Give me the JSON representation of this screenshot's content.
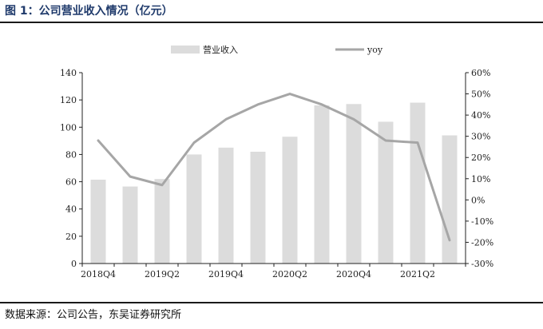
{
  "title": "图 1：公司营业收入情况（亿元）",
  "source": "数据来源：公司公告，东吴证券研究所",
  "colors": {
    "bar": "#dcdcdc",
    "line": "#a6a6a6",
    "axis": "#222222",
    "title": "#1f3a6b"
  },
  "chart_data": {
    "type": "bar",
    "categories": [
      "2018Q4",
      "2019Q1",
      "2019Q2",
      "2019Q3",
      "2019Q4",
      "2020Q1",
      "2020Q2",
      "2020Q3",
      "2020Q4",
      "2021Q1",
      "2021Q2",
      "2021Q3"
    ],
    "x_tick_labels": [
      "2018Q4",
      "2019Q2",
      "2019Q4",
      "2020Q2",
      "2020Q4",
      "2021Q2"
    ],
    "series": [
      {
        "name": "营业收入",
        "type": "bar",
        "axis": "left",
        "values": [
          61.5,
          56.5,
          62,
          80,
          85,
          82,
          93,
          116,
          117,
          104,
          118,
          94
        ]
      },
      {
        "name": "yoy",
        "type": "line",
        "axis": "right",
        "values": [
          28,
          11,
          7,
          27,
          38,
          45,
          50,
          45,
          38,
          28,
          27,
          -19
        ]
      }
    ],
    "y_left": {
      "min": 0,
      "max": 140,
      "step": 20,
      "tick_labels": [
        "0",
        "20",
        "40",
        "60",
        "80",
        "100",
        "120",
        "140"
      ]
    },
    "y_right": {
      "min": -30,
      "max": 60,
      "step": 10,
      "tick_labels": [
        "-30%",
        "-20%",
        "-10%",
        "0%",
        "10%",
        "20%",
        "30%",
        "40%",
        "50%",
        "60%"
      ]
    },
    "legend": {
      "position": "top",
      "entries": [
        "营业收入",
        "yoy"
      ]
    },
    "grid": false
  }
}
